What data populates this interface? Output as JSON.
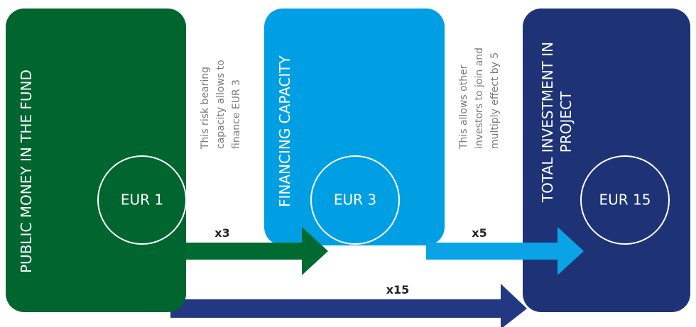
{
  "nodes": [
    {
      "title": [
        "PUBLIC MONEY IN THE FUND"
      ],
      "value": "EUR 1"
    },
    {
      "title": [
        "FINANCING CAPACITY"
      ],
      "value": "EUR 3"
    },
    {
      "title": [
        "TOTAL INVESTMENT IN",
        "PROJECT"
      ],
      "value": "EUR 15"
    }
  ],
  "notes": [
    [
      "This risk bearing",
      "capacity allows to",
      "finance EUR 3"
    ],
    [
      "This allows other",
      "investors to join and",
      "multiply effect by 5"
    ]
  ],
  "arrows": [
    "x3",
    "x5",
    "x15"
  ]
}
